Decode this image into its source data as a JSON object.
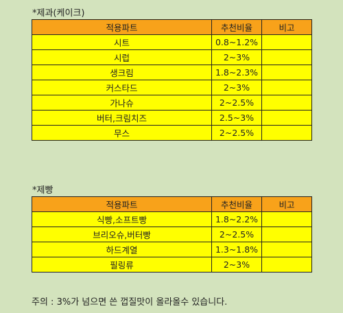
{
  "sections": [
    {
      "title": "*제과(케이크)",
      "headers": [
        "적용파트",
        "추천비율",
        "비고"
      ],
      "rows": [
        [
          "시트",
          "0.8~1.2%",
          ""
        ],
        [
          "시럽",
          "2~3%",
          ""
        ],
        [
          "생크림",
          "1.8~2.3%",
          ""
        ],
        [
          "커스타드",
          "2~3%",
          ""
        ],
        [
          "가나슈",
          "2~2.5%",
          ""
        ],
        [
          "버터,크림치즈",
          "2.5~3%",
          ""
        ],
        [
          "무스",
          "2~2.5%",
          ""
        ]
      ]
    },
    {
      "title": "*제빵",
      "headers": [
        "적용파트",
        "추천비율",
        "비고"
      ],
      "rows": [
        [
          "식빵,소프트빵",
          "1.8~2.2%",
          ""
        ],
        [
          "브리오슈,버터빵",
          "2~2.5%",
          ""
        ],
        [
          "하드계열",
          "1.3~1.8%",
          ""
        ],
        [
          "필링류",
          "2~3%",
          ""
        ]
      ]
    }
  ],
  "note": "주의 : 3%가 넘으면 쓴 껍질맛이 올라올수 있습니다."
}
